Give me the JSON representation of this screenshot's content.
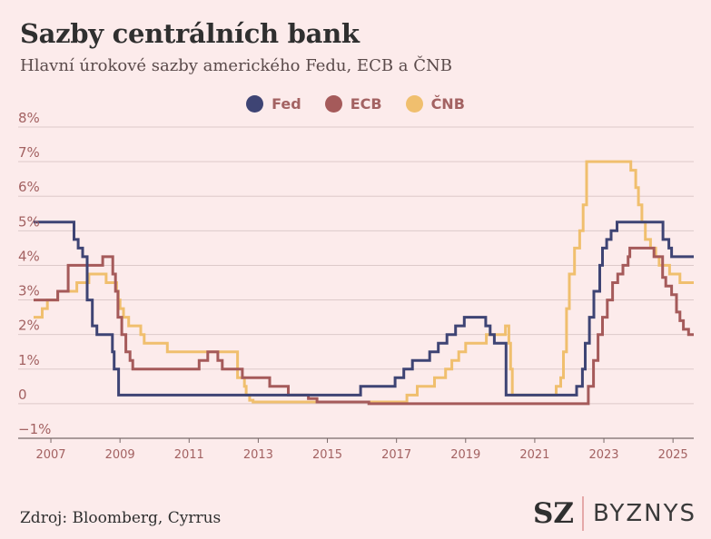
{
  "header": {
    "title": "Sazby centrálních bank",
    "subtitle": "Hlavní úrokové sazby amerického Fedu, ECB a ČNB"
  },
  "footer": {
    "source": "Zdroj: Bloomberg, Cyrrus",
    "logo_sz": "SZ",
    "logo_byznys": "BYZNYS"
  },
  "chart_data": {
    "type": "line",
    "step": true,
    "title": "Sazby centrálních bank",
    "subtitle": "Hlavní úrokové sazby amerického Fedu, ECB a ČNB",
    "legend_position": "top-center",
    "grid": true,
    "ylim": [
      -1,
      8
    ],
    "xlim": [
      2006.5,
      2025.6
    ],
    "y_ticks": [
      -1,
      0,
      1,
      2,
      3,
      4,
      5,
      6,
      7,
      8
    ],
    "y_tick_labels": [
      "−1%",
      "0",
      "1%",
      "2%",
      "3%",
      "4%",
      "5%",
      "6%",
      "7%",
      "8%"
    ],
    "x_ticks": [
      2007,
      2009,
      2011,
      2013,
      2015,
      2017,
      2019,
      2021,
      2023,
      2025
    ],
    "x_tick_labels": [
      "2007",
      "2009",
      "2011",
      "2013",
      "2015",
      "2017",
      "2019",
      "2021",
      "2023",
      "2025"
    ],
    "series": [
      {
        "name": "Fed",
        "color": "#3e4474",
        "points": [
          [
            2006.5,
            5.25
          ],
          [
            2007.67,
            4.75
          ],
          [
            2007.79,
            4.5
          ],
          [
            2007.92,
            4.25
          ],
          [
            2008.05,
            3.0
          ],
          [
            2008.2,
            2.25
          ],
          [
            2008.33,
            2.0
          ],
          [
            2008.78,
            1.5
          ],
          [
            2008.83,
            1.0
          ],
          [
            2008.96,
            0.25
          ],
          [
            2015.96,
            0.5
          ],
          [
            2016.96,
            0.75
          ],
          [
            2017.21,
            1.0
          ],
          [
            2017.46,
            1.25
          ],
          [
            2017.96,
            1.5
          ],
          [
            2018.21,
            1.75
          ],
          [
            2018.46,
            2.0
          ],
          [
            2018.71,
            2.25
          ],
          [
            2018.96,
            2.5
          ],
          [
            2019.58,
            2.25
          ],
          [
            2019.71,
            2.0
          ],
          [
            2019.83,
            1.75
          ],
          [
            2020.17,
            0.25
          ],
          [
            2022.21,
            0.5
          ],
          [
            2022.38,
            1.0
          ],
          [
            2022.46,
            1.75
          ],
          [
            2022.58,
            2.5
          ],
          [
            2022.71,
            3.25
          ],
          [
            2022.88,
            4.0
          ],
          [
            2022.96,
            4.5
          ],
          [
            2023.08,
            4.75
          ],
          [
            2023.21,
            5.0
          ],
          [
            2023.38,
            5.25
          ],
          [
            2024.71,
            4.75
          ],
          [
            2024.88,
            4.5
          ],
          [
            2024.96,
            4.25
          ],
          [
            2025.6,
            4.25
          ]
        ]
      },
      {
        "name": "ECB",
        "color": "#a55a5a",
        "points": [
          [
            2006.5,
            3.0
          ],
          [
            2007.2,
            3.25
          ],
          [
            2007.45,
            3.25
          ],
          [
            2007.5,
            4.0
          ],
          [
            2007.55,
            4.0
          ],
          [
            2008.5,
            4.25
          ],
          [
            2008.79,
            3.75
          ],
          [
            2008.87,
            3.25
          ],
          [
            2008.94,
            2.5
          ],
          [
            2009.05,
            2.0
          ],
          [
            2009.17,
            1.5
          ],
          [
            2009.29,
            1.25
          ],
          [
            2009.37,
            1.0
          ],
          [
            2011.29,
            1.25
          ],
          [
            2011.54,
            1.5
          ],
          [
            2011.83,
            1.25
          ],
          [
            2011.96,
            1.0
          ],
          [
            2012.54,
            0.75
          ],
          [
            2013.33,
            0.5
          ],
          [
            2013.87,
            0.25
          ],
          [
            2014.45,
            0.15
          ],
          [
            2014.7,
            0.05
          ],
          [
            2016.2,
            0.0
          ],
          [
            2022.55,
            0.5
          ],
          [
            2022.7,
            1.25
          ],
          [
            2022.83,
            2.0
          ],
          [
            2022.96,
            2.5
          ],
          [
            2023.1,
            3.0
          ],
          [
            2023.25,
            3.5
          ],
          [
            2023.4,
            3.75
          ],
          [
            2023.55,
            4.0
          ],
          [
            2023.7,
            4.25
          ],
          [
            2023.75,
            4.5
          ],
          [
            2024.45,
            4.25
          ],
          [
            2024.7,
            3.65
          ],
          [
            2024.79,
            3.4
          ],
          [
            2024.96,
            3.15
          ],
          [
            2025.1,
            2.65
          ],
          [
            2025.2,
            2.4
          ],
          [
            2025.3,
            2.15
          ],
          [
            2025.45,
            2.0
          ],
          [
            2025.6,
            2.0
          ]
        ]
      },
      {
        "name": "ČNB",
        "color": "#f0bf6e",
        "points": [
          [
            2006.5,
            2.5
          ],
          [
            2006.6,
            2.5
          ],
          [
            2006.75,
            2.75
          ],
          [
            2006.9,
            3.0
          ],
          [
            2007.15,
            3.0
          ],
          [
            2007.2,
            3.25
          ],
          [
            2007.6,
            3.25
          ],
          [
            2007.75,
            3.5
          ],
          [
            2008.1,
            3.75
          ],
          [
            2008.3,
            3.75
          ],
          [
            2008.6,
            3.5
          ],
          [
            2008.85,
            3.5
          ],
          [
            2008.9,
            3.25
          ],
          [
            2008.95,
            3.0
          ],
          [
            2009.0,
            2.75
          ],
          [
            2009.1,
            2.5
          ],
          [
            2009.25,
            2.25
          ],
          [
            2009.45,
            2.25
          ],
          [
            2009.6,
            2.0
          ],
          [
            2009.7,
            1.75
          ],
          [
            2010.37,
            1.5
          ],
          [
            2010.8,
            1.5
          ],
          [
            2011.0,
            1.5
          ],
          [
            2012.4,
            0.75
          ],
          [
            2012.5,
            0.75
          ],
          [
            2012.6,
            0.5
          ],
          [
            2012.65,
            0.25
          ],
          [
            2012.75,
            0.1
          ],
          [
            2012.85,
            0.05
          ],
          [
            2017.3,
            0.25
          ],
          [
            2017.6,
            0.5
          ],
          [
            2018.1,
            0.75
          ],
          [
            2018.42,
            1.0
          ],
          [
            2018.6,
            1.25
          ],
          [
            2018.8,
            1.5
          ],
          [
            2019.0,
            1.75
          ],
          [
            2019.35,
            1.75
          ],
          [
            2019.6,
            2.0
          ],
          [
            2019.85,
            2.0
          ],
          [
            2020.15,
            2.25
          ],
          [
            2020.25,
            1.75
          ],
          [
            2020.3,
            1.0
          ],
          [
            2020.35,
            0.25
          ],
          [
            2021.5,
            0.25
          ],
          [
            2021.62,
            0.5
          ],
          [
            2021.75,
            0.75
          ],
          [
            2021.83,
            1.5
          ],
          [
            2021.92,
            2.75
          ],
          [
            2022.0,
            3.75
          ],
          [
            2022.15,
            4.5
          ],
          [
            2022.3,
            5.0
          ],
          [
            2022.4,
            5.75
          ],
          [
            2022.5,
            7.0
          ],
          [
            2023.65,
            7.0
          ],
          [
            2023.78,
            6.75
          ],
          [
            2023.92,
            6.25
          ],
          [
            2024.0,
            5.75
          ],
          [
            2024.1,
            5.25
          ],
          [
            2024.2,
            4.75
          ],
          [
            2024.35,
            4.5
          ],
          [
            2024.5,
            4.25
          ],
          [
            2024.6,
            4.0
          ],
          [
            2024.9,
            3.75
          ],
          [
            2025.2,
            3.5
          ],
          [
            2025.6,
            3.5
          ]
        ]
      }
    ]
  }
}
